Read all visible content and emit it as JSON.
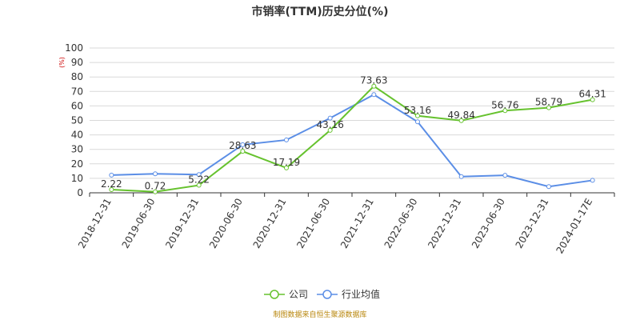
{
  "chart_data": {
    "type": "line",
    "title": "市销率(TTM)历史分位(%)",
    "unit_label": "(%)",
    "categories": [
      "2018-12-31",
      "2019-06-30",
      "2019-12-31",
      "2020-06-30",
      "2020-12-31",
      "2021-06-30",
      "2021-12-31",
      "2022-06-30",
      "2022-12-31",
      "2023-06-30",
      "2023-12-31",
      "2024-01-17E"
    ],
    "ylim": [
      0,
      100
    ],
    "yticks": [
      0,
      10,
      20,
      30,
      40,
      50,
      60,
      70,
      80,
      90,
      100
    ],
    "grid": true,
    "legend_position": "bottom",
    "series": [
      {
        "name": "公司",
        "color": "#66c22e",
        "values": [
          2.22,
          0.72,
          5.22,
          28.63,
          17.19,
          43.16,
          73.63,
          53.16,
          49.84,
          56.76,
          58.79,
          64.31
        ],
        "data_labels": [
          "2.22",
          "0.72",
          "5.22",
          "28.63",
          "17.19",
          "43.16",
          "73.63",
          "53.16",
          "49.84",
          "56.76",
          "58.79",
          "64.31"
        ]
      },
      {
        "name": "行业均值",
        "color": "#5b8ee6",
        "values": [
          12.2,
          13.1,
          12.6,
          33.2,
          36.5,
          51.6,
          67.8,
          49.0,
          11.2,
          12.1,
          4.3,
          8.6
        ]
      }
    ]
  },
  "footer": {
    "source": "制图数据来自恒生聚源数据库"
  }
}
